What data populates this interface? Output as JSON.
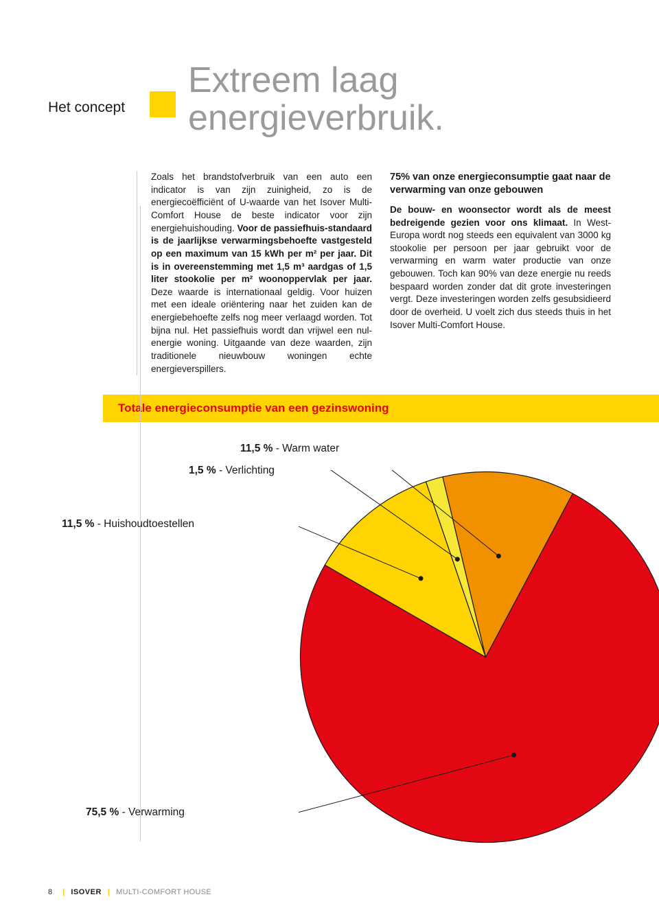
{
  "header": {
    "section_label": "Het concept",
    "title": "Extreem laag energieverbruik.",
    "accent_color": "#ffd400",
    "title_color": "#9a9a9a"
  },
  "body": {
    "col1": "Zoals het brandstofverbruik van een auto een indicator is van zijn zuinigheid, zo is de energiecoëfficiënt of U-waarde van het Isover Multi-Comfort House de beste indicator voor zijn energiehuishouding. Voor de passiefhuis-standaard is de jaarlijkse verwarmingsbehoefte vastgesteld op een maximum van 15 kWh per m² per jaar. Dit is in overeenstemming met 1,5 m³ aardgas of 1,5 liter stookolie per m² woonoppervlak per jaar. Deze waarde is internationaal geldig. Voor huizen met een ideale oriëntering naar het zuiden kan de energiebehoefte zelfs nog meer verlaagd worden. Tot bijna nul. Het passiefhuis wordt dan vrijwel een nul-energie woning. Uitgaande van deze waarden, zijn traditionele nieuwbouw woningen echte energieverspillers.",
    "col2_heading": "75% van onze energieconsumptie gaat naar de verwarming van onze gebouwen",
    "col2": "De bouw- en woonsector wordt als de meest bedreigende gezien voor ons klimaat. In West-Europa wordt nog steeds een equivalent van 3000 kg stookolie per persoon per jaar gebruikt voor de verwarming en warm water productie van onze gebouwen. Toch kan 90% van deze energie nu reeds bespaard worden zonder dat dit grote investeringen vergt. Deze investeringen worden zelfs gesubsidieerd door de overheid. U voelt zich dus steeds thuis in het Isover Multi-Comfort House."
  },
  "chart": {
    "title": "Totale energieconsumptie van een gezinswoning",
    "type": "pie",
    "background_color": "#ffffff",
    "title_bar_color": "#ffd400",
    "title_text_color": "#e30613",
    "stroke_color": "#1a1a1a",
    "stroke_width": 1.2,
    "slices": [
      {
        "label": "Verwarming",
        "pct": "75,5 %",
        "value": 75.5,
        "color": "#e30613"
      },
      {
        "label": "Huishoudtoestellen",
        "pct": "11,5 %",
        "value": 11.5,
        "color": "#ffd400"
      },
      {
        "label": "Verlichting",
        "pct": "1,5 %",
        "value": 1.5,
        "color": "#f7e837"
      },
      {
        "label": "Warm water",
        "pct": "11,5 %",
        "value": 11.5,
        "color": "#f29100"
      }
    ],
    "callouts": {
      "warm_water": {
        "pct": "11,5 %",
        "label": " - Warm water"
      },
      "verlichting": {
        "pct": "1,5 %",
        "label": " - Verlichting"
      },
      "huishoud": {
        "pct": "11,5 %",
        "label": " - Huishoudtoestellen"
      },
      "verwarming": {
        "pct": "75,5 %",
        "label": " - Verwarming"
      }
    }
  },
  "footer": {
    "page": "8",
    "brand": "ISOVER",
    "subtitle": "MULTI-COMFORT HOUSE"
  }
}
